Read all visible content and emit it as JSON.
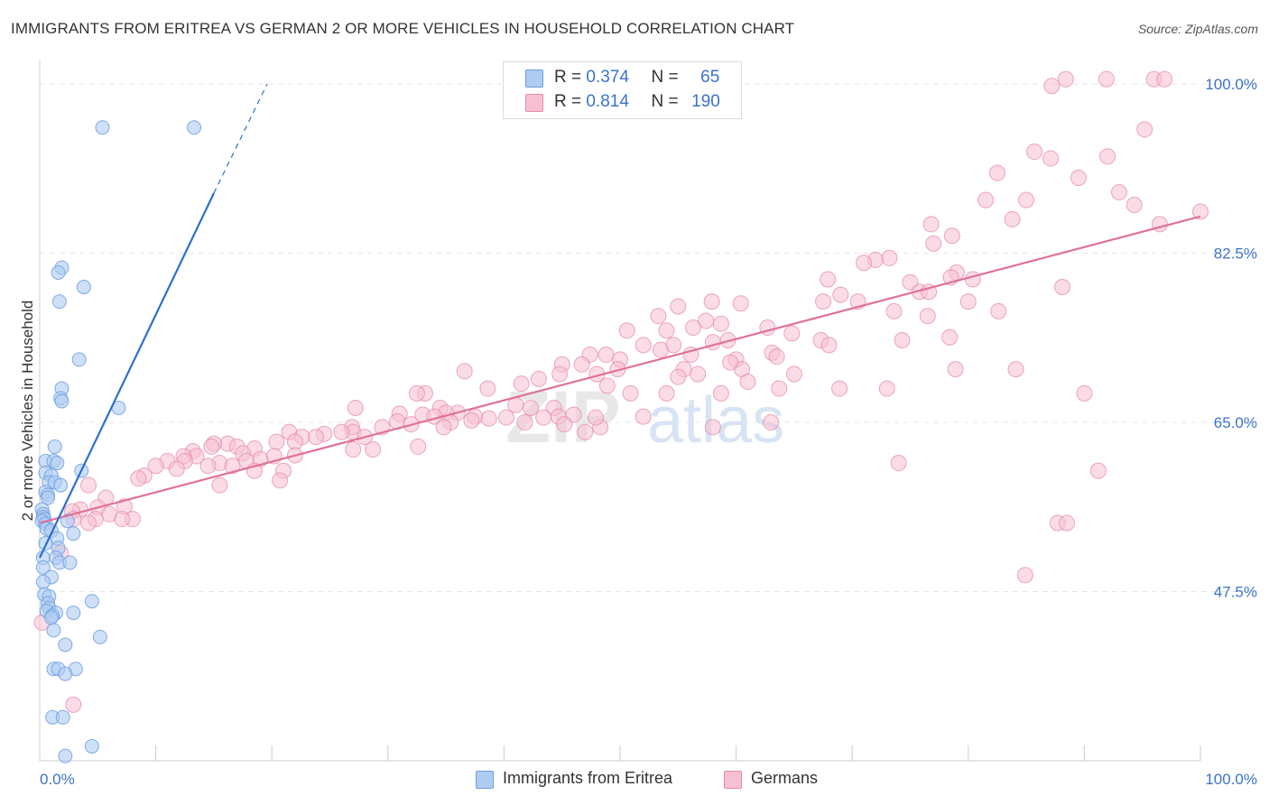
{
  "title": "IMMIGRANTS FROM ERITREA VS GERMAN 2 OR MORE VEHICLES IN HOUSEHOLD CORRELATION CHART",
  "source": "Source: ZipAtlas.com",
  "watermark": {
    "zip": "ZIP",
    "atlas": "atlas"
  },
  "legend": {
    "series1": {
      "r_label": "R =",
      "r_value": "0.374",
      "n_label": "N =",
      "n_value": "65"
    },
    "series2": {
      "r_label": "R =",
      "r_value": "0.814",
      "n_label": "N =",
      "n_value": "190"
    }
  },
  "bottom_legend": [
    "Immigrants from Eritrea",
    "Germans"
  ],
  "colors": {
    "blue_fill": "#aecbf2",
    "blue_edge": "#6d9de0",
    "blue_line": "#2d6fd0",
    "pink_fill": "#f7c0d2",
    "pink_edge": "#e58aa8",
    "pink_line": "#e0719a",
    "axis_text": "#3b73c8",
    "grid": "#e6e6e6"
  },
  "chart_data": {
    "type": "scatter",
    "title": "IMMIGRANTS FROM ERITREA VS GERMAN 2 OR MORE VEHICLES IN HOUSEHOLD CORRELATION CHART",
    "xlabel": "",
    "ylabel": "2 or more Vehicles in Household",
    "xlim": [
      0,
      100
    ],
    "ylim": [
      30,
      101.5
    ],
    "x_tick_labels": [
      "0.0%",
      "100.0%"
    ],
    "y_ticks": [
      47.5,
      65.0,
      82.5,
      100.0
    ],
    "y_tick_labels": [
      "47.5%",
      "65.0%",
      "82.5%",
      "100.0%"
    ],
    "grid": true,
    "legend_position": "top-center",
    "series": [
      {
        "name": "Immigrants from Eritrea",
        "color": "#aecbf2",
        "r": 0.374,
        "n": 65,
        "trend": {
          "x": [
            0.0,
            15.0
          ],
          "y": [
            51.0,
            88.7
          ],
          "dashed_to": [
            19.6,
            100.0
          ]
        },
        "points": [
          [
            5.4,
            95.5
          ],
          [
            13.3,
            95.5
          ],
          [
            1.9,
            81.0
          ],
          [
            1.6,
            80.5
          ],
          [
            3.8,
            79.0
          ],
          [
            1.7,
            77.5
          ],
          [
            3.4,
            71.5
          ],
          [
            1.9,
            68.5
          ],
          [
            1.8,
            67.5
          ],
          [
            1.9,
            67.2
          ],
          [
            6.8,
            66.5
          ],
          [
            1.3,
            62.5
          ],
          [
            0.5,
            61.0
          ],
          [
            1.2,
            61.0
          ],
          [
            1.5,
            60.8
          ],
          [
            3.6,
            60.0
          ],
          [
            0.5,
            59.8
          ],
          [
            1.0,
            59.5
          ],
          [
            0.8,
            58.8
          ],
          [
            1.3,
            58.8
          ],
          [
            1.8,
            58.5
          ],
          [
            0.5,
            57.8
          ],
          [
            0.7,
            57.5
          ],
          [
            0.7,
            57.2
          ],
          [
            0.2,
            56.0
          ],
          [
            0.3,
            55.5
          ],
          [
            0.3,
            55.2
          ],
          [
            0.4,
            55.0
          ],
          [
            0.2,
            54.8
          ],
          [
            0.5,
            54.5
          ],
          [
            2.4,
            54.8
          ],
          [
            0.6,
            54.0
          ],
          [
            1.0,
            53.8
          ],
          [
            2.9,
            53.5
          ],
          [
            1.5,
            53.0
          ],
          [
            0.5,
            52.5
          ],
          [
            1.6,
            52.0
          ],
          [
            0.3,
            51.0
          ],
          [
            1.4,
            51.0
          ],
          [
            1.7,
            50.5
          ],
          [
            2.6,
            50.5
          ],
          [
            0.3,
            50.0
          ],
          [
            1.0,
            49.0
          ],
          [
            0.3,
            48.5
          ],
          [
            0.4,
            47.2
          ],
          [
            0.8,
            47.0
          ],
          [
            4.5,
            46.5
          ],
          [
            0.7,
            46.3
          ],
          [
            0.8,
            45.8
          ],
          [
            0.6,
            45.5
          ],
          [
            1.4,
            45.3
          ],
          [
            2.9,
            45.3
          ],
          [
            1.1,
            45.0
          ],
          [
            1.0,
            44.8
          ],
          [
            1.2,
            43.5
          ],
          [
            5.2,
            42.8
          ],
          [
            2.2,
            42.0
          ],
          [
            1.2,
            39.5
          ],
          [
            1.6,
            39.5
          ],
          [
            3.1,
            39.5
          ],
          [
            2.2,
            39.0
          ],
          [
            1.1,
            34.5
          ],
          [
            2.0,
            34.5
          ],
          [
            4.5,
            31.5
          ],
          [
            2.2,
            30.5
          ]
        ]
      },
      {
        "name": "Germans",
        "color": "#f7c0d2",
        "r": 0.814,
        "n": 190,
        "trend": {
          "x": [
            0.0,
            100.0
          ],
          "y": [
            54.6,
            86.3
          ]
        },
        "points": [
          [
            87.2,
            99.8
          ],
          [
            88.4,
            100.5
          ],
          [
            91.9,
            100.5
          ],
          [
            96.0,
            100.5
          ],
          [
            96.9,
            100.5
          ],
          [
            95.2,
            95.3
          ],
          [
            85.7,
            93.0
          ],
          [
            87.1,
            92.3
          ],
          [
            92.0,
            92.5
          ],
          [
            82.5,
            90.8
          ],
          [
            89.5,
            90.3
          ],
          [
            93.0,
            88.8
          ],
          [
            81.5,
            88.0
          ],
          [
            85.0,
            88.0
          ],
          [
            94.3,
            87.5
          ],
          [
            83.8,
            86.0
          ],
          [
            96.5,
            85.5
          ],
          [
            100.0,
            86.8
          ],
          [
            76.8,
            85.5
          ],
          [
            78.6,
            84.3
          ],
          [
            77.0,
            83.5
          ],
          [
            73.2,
            82.0
          ],
          [
            72.0,
            81.8
          ],
          [
            71.0,
            81.5
          ],
          [
            79.0,
            80.5
          ],
          [
            78.5,
            80.0
          ],
          [
            80.4,
            79.8
          ],
          [
            75.0,
            79.5
          ],
          [
            88.1,
            79.0
          ],
          [
            75.8,
            78.5
          ],
          [
            76.6,
            78.5
          ],
          [
            67.9,
            79.8
          ],
          [
            69.0,
            78.2
          ],
          [
            80.0,
            77.5
          ],
          [
            67.5,
            77.5
          ],
          [
            70.5,
            77.5
          ],
          [
            60.4,
            77.3
          ],
          [
            57.9,
            77.5
          ],
          [
            55.0,
            77.0
          ],
          [
            73.6,
            76.5
          ],
          [
            82.6,
            76.5
          ],
          [
            76.5,
            76.0
          ],
          [
            53.3,
            76.0
          ],
          [
            57.4,
            75.5
          ],
          [
            56.3,
            74.8
          ],
          [
            58.7,
            75.2
          ],
          [
            62.7,
            74.8
          ],
          [
            54.0,
            74.5
          ],
          [
            50.6,
            74.5
          ],
          [
            64.8,
            74.2
          ],
          [
            58.0,
            73.3
          ],
          [
            67.3,
            73.5
          ],
          [
            74.3,
            73.5
          ],
          [
            78.4,
            73.8
          ],
          [
            54.6,
            73.0
          ],
          [
            52.0,
            73.0
          ],
          [
            53.5,
            72.5
          ],
          [
            59.3,
            73.5
          ],
          [
            68.0,
            73.0
          ],
          [
            63.1,
            72.2
          ],
          [
            56.1,
            72.0
          ],
          [
            63.5,
            71.8
          ],
          [
            60.0,
            71.5
          ],
          [
            48.8,
            72.0
          ],
          [
            47.4,
            72.0
          ],
          [
            50.0,
            71.5
          ],
          [
            46.7,
            71.0
          ],
          [
            45.0,
            71.0
          ],
          [
            49.8,
            70.5
          ],
          [
            55.5,
            70.5
          ],
          [
            60.5,
            70.5
          ],
          [
            48.0,
            70.0
          ],
          [
            65.0,
            70.0
          ],
          [
            56.7,
            70.0
          ],
          [
            59.5,
            71.2
          ],
          [
            84.1,
            70.5
          ],
          [
            78.9,
            70.5
          ],
          [
            36.6,
            70.3
          ],
          [
            44.8,
            70.0
          ],
          [
            55.0,
            69.7
          ],
          [
            43.0,
            69.5
          ],
          [
            61.0,
            69.2
          ],
          [
            63.7,
            68.5
          ],
          [
            41.5,
            69.0
          ],
          [
            48.9,
            68.8
          ],
          [
            90.0,
            68.0
          ],
          [
            73.0,
            68.5
          ],
          [
            50.9,
            68.0
          ],
          [
            68.9,
            68.5
          ],
          [
            54.0,
            68.0
          ],
          [
            58.7,
            68.0
          ],
          [
            38.6,
            68.5
          ],
          [
            33.2,
            68.0
          ],
          [
            32.5,
            68.0
          ],
          [
            41.0,
            66.8
          ],
          [
            34.5,
            66.5
          ],
          [
            42.3,
            66.5
          ],
          [
            44.3,
            66.5
          ],
          [
            27.2,
            66.5
          ],
          [
            36.0,
            66.0
          ],
          [
            35.0,
            66.0
          ],
          [
            31.0,
            65.9
          ],
          [
            33.0,
            65.8
          ],
          [
            46.0,
            65.8
          ],
          [
            44.7,
            65.6
          ],
          [
            34.0,
            65.6
          ],
          [
            37.5,
            65.6
          ],
          [
            40.2,
            65.5
          ],
          [
            43.4,
            65.5
          ],
          [
            38.7,
            65.4
          ],
          [
            30.8,
            65.1
          ],
          [
            35.4,
            65.0
          ],
          [
            37.2,
            65.2
          ],
          [
            41.8,
            65.0
          ],
          [
            45.2,
            64.8
          ],
          [
            32.0,
            64.8
          ],
          [
            34.8,
            64.5
          ],
          [
            48.3,
            64.5
          ],
          [
            29.5,
            64.5
          ],
          [
            26.9,
            64.5
          ],
          [
            52.0,
            65.6
          ],
          [
            47.9,
            65.5
          ],
          [
            63.0,
            65.0
          ],
          [
            58.0,
            64.5
          ],
          [
            47.0,
            64.0
          ],
          [
            27.0,
            64.0
          ],
          [
            21.5,
            64.0
          ],
          [
            24.5,
            63.8
          ],
          [
            26.0,
            64.0
          ],
          [
            22.6,
            63.5
          ],
          [
            28.0,
            63.5
          ],
          [
            23.8,
            63.5
          ],
          [
            22.0,
            63.0
          ],
          [
            20.4,
            63.0
          ],
          [
            16.2,
            62.8
          ],
          [
            17.0,
            62.5
          ],
          [
            15.0,
            62.8
          ],
          [
            14.8,
            62.5
          ],
          [
            32.6,
            62.5
          ],
          [
            28.7,
            62.2
          ],
          [
            27.0,
            62.2
          ],
          [
            18.5,
            62.3
          ],
          [
            17.5,
            61.8
          ],
          [
            13.2,
            62.0
          ],
          [
            13.5,
            61.5
          ],
          [
            12.4,
            61.5
          ],
          [
            12.5,
            61.0
          ],
          [
            11.0,
            61.0
          ],
          [
            20.2,
            61.5
          ],
          [
            22.0,
            61.6
          ],
          [
            19.0,
            61.2
          ],
          [
            17.8,
            61.0
          ],
          [
            15.5,
            60.8
          ],
          [
            10.0,
            60.5
          ],
          [
            16.6,
            60.5
          ],
          [
            14.5,
            60.5
          ],
          [
            11.8,
            60.2
          ],
          [
            21.0,
            60.0
          ],
          [
            18.5,
            60.0
          ],
          [
            91.2,
            60.0
          ],
          [
            74.0,
            60.8
          ],
          [
            9.0,
            59.5
          ],
          [
            8.5,
            59.2
          ],
          [
            20.7,
            59.0
          ],
          [
            15.5,
            58.5
          ],
          [
            4.2,
            58.5
          ],
          [
            5.7,
            57.2
          ],
          [
            3.5,
            56.0
          ],
          [
            7.3,
            56.3
          ],
          [
            5.0,
            56.2
          ],
          [
            6.0,
            55.5
          ],
          [
            8.0,
            55.0
          ],
          [
            4.8,
            55.0
          ],
          [
            2.8,
            55.8
          ],
          [
            7.1,
            55.0
          ],
          [
            2.9,
            55.0
          ],
          [
            4.2,
            54.6
          ],
          [
            87.7,
            54.6
          ],
          [
            88.5,
            54.6
          ],
          [
            1.8,
            51.5
          ],
          [
            84.9,
            49.2
          ],
          [
            0.2,
            44.3
          ],
          [
            2.9,
            35.8
          ]
        ]
      }
    ]
  }
}
